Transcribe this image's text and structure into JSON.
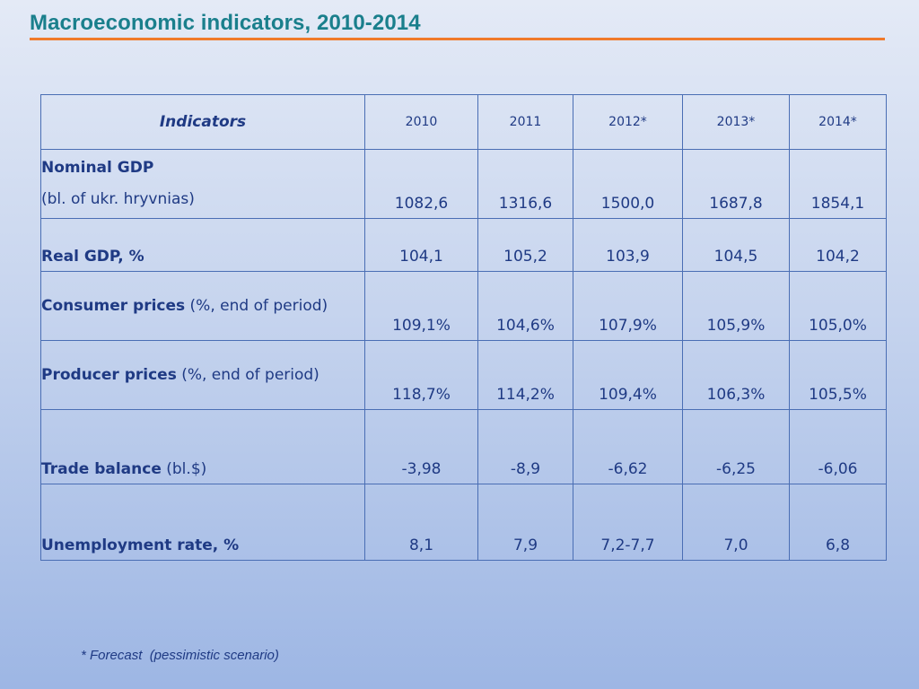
{
  "slide": {
    "title": "Macroeconomic indicators, 2010-2014",
    "footnote": "* Forecast  (pessimistic scenario)",
    "colors": {
      "title": "#1a7f8c",
      "rule": "#f07a2a",
      "table_text": "#1f3a84",
      "grid": "#4a6eb4"
    }
  },
  "table": {
    "header": {
      "indicator": "Indicators",
      "years": [
        "2010",
        "2011",
        "2012*",
        "2013*",
        "2014*"
      ]
    },
    "rows": [
      {
        "label_bold": "Nominal GDP",
        "label_rest": "(bl. of ukr. hryvnias)",
        "values": [
          "1082,6",
          "1316,6",
          "1500,0",
          "1687,8",
          "1854,1"
        ]
      },
      {
        "label_bold": "Real GDP, %",
        "label_rest": "",
        "values": [
          "104,1",
          "105,2",
          "103,9",
          "104,5",
          "104,2"
        ]
      },
      {
        "label_bold": "Consumer prices",
        "label_rest": " (%, end of period)",
        "values": [
          "109,1%",
          "104,6%",
          "107,9%",
          "105,9%",
          "105,0%"
        ]
      },
      {
        "label_bold": "Producer  prices",
        "label_rest": " (%, end of period)",
        "values": [
          "118,7%",
          "114,2%",
          "109,4%",
          "106,3%",
          "105,5%"
        ]
      },
      {
        "label_bold": "Trade balance",
        "label_rest": " (bl.$)",
        "values": [
          "-3,98",
          "-8,9",
          "-6,62",
          "-6,25",
          "-6,06"
        ]
      },
      {
        "label_bold": "Unemployment rate, %",
        "label_rest": "",
        "values": [
          "8,1",
          "7,9",
          "7,2-7,7",
          "7,0",
          "6,8"
        ]
      }
    ]
  }
}
